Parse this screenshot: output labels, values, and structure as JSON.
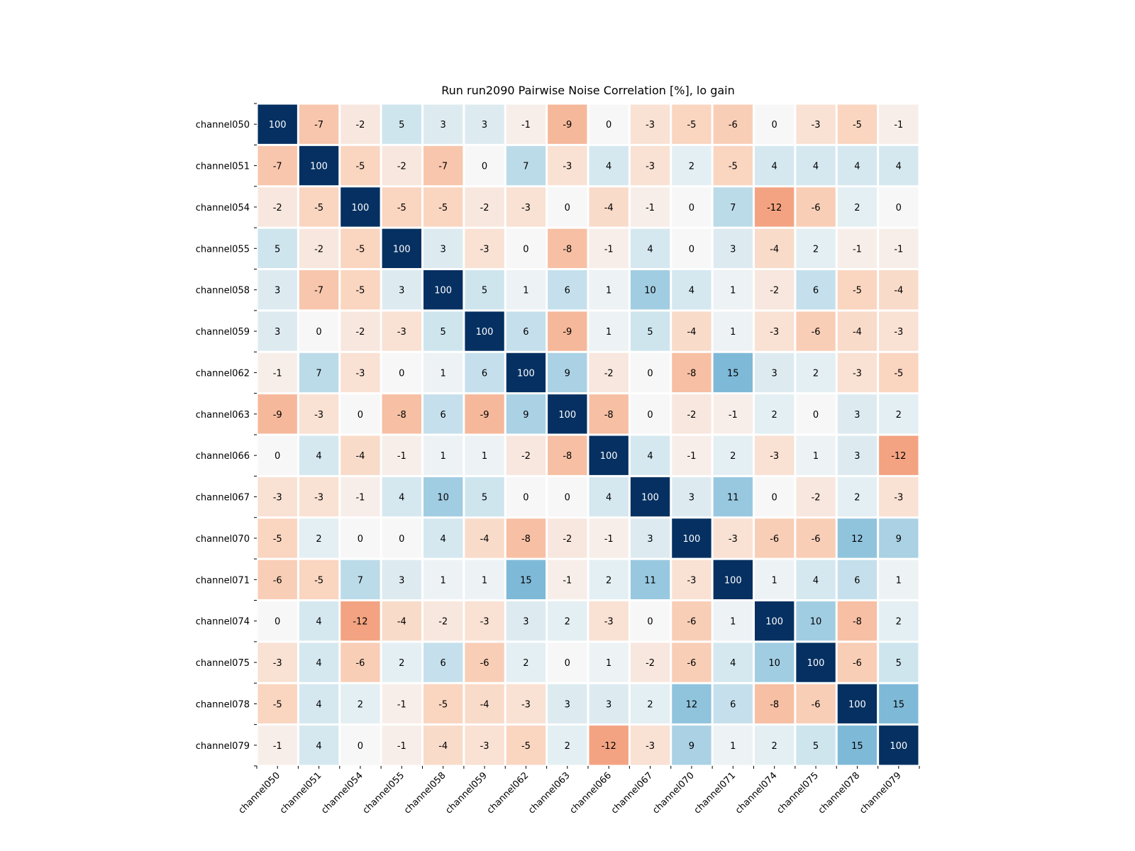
{
  "chart_data": {
    "type": "heatmap",
    "title": "Run run2090 Pairwise Noise Correlation [%], lo gain",
    "xlabel": "",
    "ylabel": "",
    "labels": [
      "channel050",
      "channel051",
      "channel054",
      "channel055",
      "channel058",
      "channel059",
      "channel062",
      "channel063",
      "channel066",
      "channel067",
      "channel070",
      "channel071",
      "channel074",
      "channel075",
      "channel078",
      "channel079"
    ],
    "color_range": [
      -100,
      100
    ],
    "colormap": "RdBu",
    "matrix": [
      [
        100,
        -7,
        -2,
        5,
        3,
        3,
        -1,
        -9,
        0,
        -3,
        -5,
        -6,
        0,
        -3,
        -5,
        -1
      ],
      [
        -7,
        100,
        -5,
        -2,
        -7,
        0,
        7,
        -3,
        4,
        -3,
        2,
        -5,
        4,
        4,
        4,
        4
      ],
      [
        -2,
        -5,
        100,
        -5,
        -5,
        -2,
        -3,
        0,
        -4,
        -1,
        0,
        7,
        -12,
        -6,
        2,
        0
      ],
      [
        5,
        -2,
        -5,
        100,
        3,
        -3,
        0,
        -8,
        -1,
        4,
        0,
        3,
        -4,
        2,
        -1,
        -1
      ],
      [
        3,
        -7,
        -5,
        3,
        100,
        5,
        1,
        6,
        1,
        10,
        4,
        1,
        -2,
        6,
        -5,
        -4
      ],
      [
        3,
        0,
        -2,
        -3,
        5,
        100,
        6,
        -9,
        1,
        5,
        -4,
        1,
        -3,
        -6,
        -4,
        -3
      ],
      [
        -1,
        7,
        -3,
        0,
        1,
        6,
        100,
        9,
        -2,
        0,
        -8,
        15,
        3,
        2,
        -3,
        -5
      ],
      [
        -9,
        -3,
        0,
        -8,
        6,
        -9,
        9,
        100,
        -8,
        0,
        -2,
        -1,
        2,
        0,
        3,
        2
      ],
      [
        0,
        4,
        -4,
        -1,
        1,
        1,
        -2,
        -8,
        100,
        4,
        -1,
        2,
        -3,
        1,
        3,
        -12
      ],
      [
        -3,
        -3,
        -1,
        4,
        10,
        5,
        0,
        0,
        4,
        100,
        3,
        11,
        0,
        -2,
        2,
        -3
      ],
      [
        -5,
        2,
        0,
        0,
        4,
        -4,
        -8,
        -2,
        -1,
        3,
        100,
        -3,
        -6,
        -6,
        12,
        9
      ],
      [
        -6,
        -5,
        7,
        3,
        1,
        1,
        15,
        -1,
        2,
        11,
        -3,
        100,
        1,
        4,
        6,
        1
      ],
      [
        0,
        4,
        -12,
        -4,
        -2,
        -3,
        3,
        2,
        -3,
        0,
        -6,
        1,
        100,
        10,
        -8,
        2
      ],
      [
        -3,
        4,
        -6,
        2,
        6,
        -6,
        2,
        0,
        1,
        -2,
        -6,
        4,
        10,
        100,
        -6,
        5
      ],
      [
        -5,
        4,
        2,
        -1,
        -5,
        -4,
        -3,
        3,
        3,
        2,
        12,
        6,
        -8,
        -6,
        100,
        15
      ],
      [
        -1,
        4,
        0,
        -1,
        -4,
        -3,
        -5,
        2,
        -12,
        -3,
        9,
        1,
        2,
        5,
        15,
        100
      ]
    ]
  }
}
